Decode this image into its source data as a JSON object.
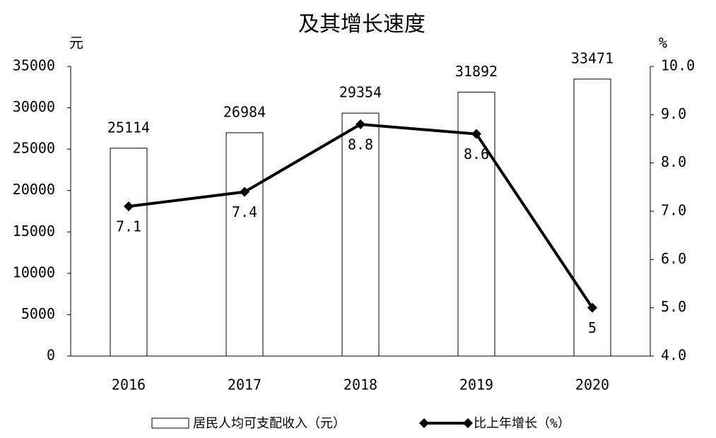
{
  "chart_data": {
    "type": "bar_line",
    "title": "及其增长速度",
    "y_label": "元",
    "y2_label": "%",
    "categories": [
      "2016",
      "2017",
      "2018",
      "2019",
      "2020"
    ],
    "series": [
      {
        "name": "居民人均可支配收入（元）",
        "type": "bar",
        "color": "#ffffff",
        "values": [
          25114,
          26984,
          29354,
          31892,
          33471
        ]
      },
      {
        "name": "比上年增长（%）",
        "type": "line",
        "axis": "y2",
        "color": "#000000",
        "values": [
          7.1,
          7.4,
          8.8,
          8.6,
          5.0
        ]
      }
    ],
    "ylim": [
      0,
      35000
    ],
    "yticks": [
      0,
      5000,
      10000,
      15000,
      20000,
      25000,
      30000,
      35000
    ],
    "y2lim": [
      4,
      10
    ],
    "y2ticks": [
      {
        "value": 4,
        "label": "4.0"
      },
      {
        "value": 5,
        "label": "5.0"
      },
      {
        "value": 6,
        "label": "6.0"
      },
      {
        "value": 7,
        "label": "7.0"
      },
      {
        "value": 8,
        "label": "8.0"
      },
      {
        "value": 9,
        "label": "9.0"
      },
      {
        "value": 10,
        "label": "10.0"
      }
    ]
  }
}
